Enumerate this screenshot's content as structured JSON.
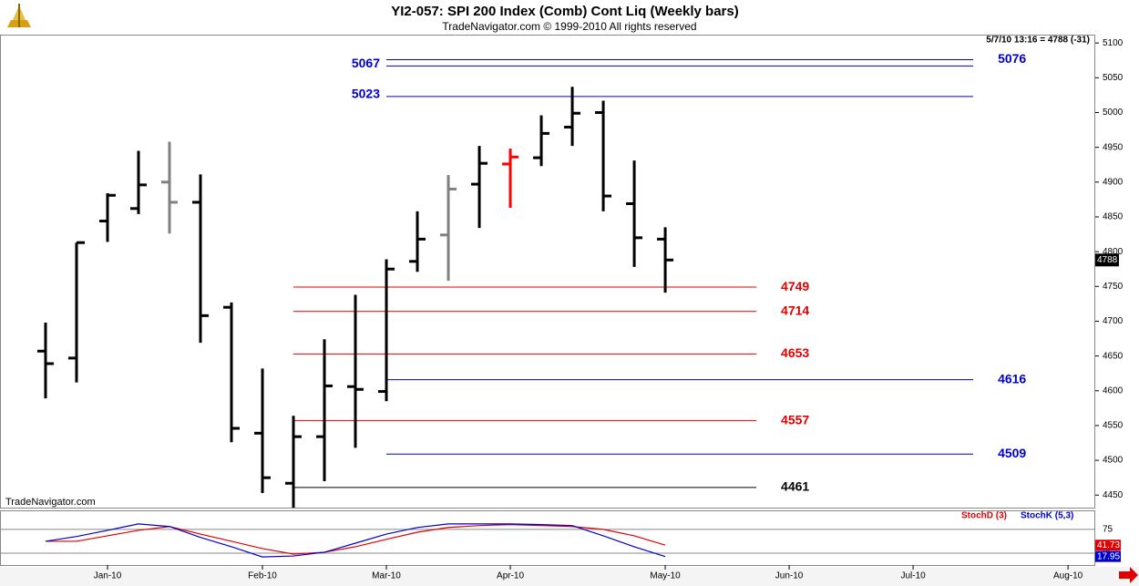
{
  "chart_data": [
    {
      "type": "ohlc",
      "title": "YI2-057:  SPI 200 Index (Comb) Cont Liq  (Weekly bars)",
      "subtitle": "TradeNavigator.com © 1999-2010 All rights reserved",
      "info": "5/7/10 13:16 = 4788 (-31)",
      "watermark": "TradeNavigator.com",
      "x": [
        0,
        1,
        2,
        3,
        4,
        5,
        6,
        7,
        8,
        9,
        10,
        11,
        12,
        13,
        14,
        15,
        16,
        17,
        18,
        19,
        20
      ],
      "open": [
        4657,
        4647,
        4844,
        4862,
        4900,
        4871,
        4720,
        4539,
        4467,
        4534,
        4606,
        4599,
        4786,
        4824,
        4897,
        4926,
        4935,
        4979,
        5000,
        4869,
        4818
      ],
      "high": [
        4698,
        4813,
        4884,
        4945,
        4958,
        4911,
        4727,
        4632,
        4564,
        4674,
        4738,
        4789,
        4858,
        4910,
        4952,
        4948,
        4996,
        5037,
        5017,
        4931,
        4835
      ],
      "low": [
        4589,
        4612,
        4814,
        4854,
        4826,
        4669,
        4526,
        4453,
        4432,
        4470,
        4518,
        4585,
        4771,
        4758,
        4834,
        4863,
        4923,
        4952,
        4858,
        4778,
        4741
      ],
      "close": [
        4639,
        4813,
        4881,
        4896,
        4871,
        4708,
        4546,
        4475,
        4534,
        4607,
        4602,
        4775,
        4818,
        4890,
        4927,
        4936,
        4970,
        4999,
        4880,
        4820,
        4788
      ],
      "bar_colors": [
        "#000000",
        "#000000",
        "#000000",
        "#000000",
        "#808080",
        "#000000",
        "#000000",
        "#000000",
        "#000000",
        "#000000",
        "#000000",
        "#000000",
        "#000000",
        "#808080",
        "#000000",
        "#ff0000",
        "#000000",
        "#000000",
        "#000000",
        "#000000",
        "#000000"
      ],
      "levels": [
        {
          "value": 5076,
          "color": "#0000cc",
          "start": 11,
          "end": 29.94,
          "label_side": "right"
        },
        {
          "value": 5067,
          "color": "#0000cc",
          "start": 11,
          "end": 29.94,
          "label_side": "left"
        },
        {
          "value": 5023,
          "color": "#0000cc",
          "start": 11,
          "end": 29.94,
          "label_side": "left"
        },
        {
          "value": 4749,
          "color": "#e00000",
          "start": 8,
          "end": 22.94,
          "label_side": "right"
        },
        {
          "value": 4714,
          "color": "#e00000",
          "start": 8,
          "end": 22.94,
          "label_side": "right"
        },
        {
          "value": 4653,
          "color": "#e00000",
          "start": 8,
          "end": 22.94,
          "label_side": "right"
        },
        {
          "value": 4616,
          "color": "#0000cc",
          "start": 11,
          "end": 29.94,
          "label_side": "right"
        },
        {
          "value": 4557,
          "color": "#e00000",
          "start": 8,
          "end": 22.94,
          "label_side": "right"
        },
        {
          "value": 4509,
          "color": "#0000cc",
          "start": 11,
          "end": 29.94,
          "label_side": "right"
        },
        {
          "value": 4461,
          "color": "#000000",
          "start": 8,
          "end": 22.94,
          "label_side": "right"
        }
      ],
      "xlim": [
        -1.47,
        33.82
      ],
      "xticks": [
        {
          "value": 2,
          "label": "Jan-10"
        },
        {
          "value": 7,
          "label": "Feb-10"
        },
        {
          "value": 11,
          "label": "Mar-10"
        },
        {
          "value": 15,
          "label": "Apr-10"
        },
        {
          "value": 20,
          "label": "May-10"
        },
        {
          "value": 24,
          "label": "Jun-10"
        },
        {
          "value": 28,
          "label": "Jul-10"
        },
        {
          "value": 33,
          "label": "Aug-10"
        }
      ],
      "ylim": [
        4432,
        5112
      ],
      "yticks": [
        4450,
        4500,
        4550,
        4600,
        4650,
        4700,
        4750,
        4800,
        4850,
        4900,
        4950,
        5000,
        5050,
        5100
      ]
    },
    {
      "type": "line",
      "series": [
        {
          "name": "StochD (3)",
          "color": "#e00000",
          "values": [
            50,
            50,
            61.5,
            73,
            81,
            65,
            50,
            34.6,
            23,
            27,
            38.5,
            54,
            69,
            79,
            83,
            85,
            83,
            81,
            75,
            61.5,
            41.73
          ]
        },
        {
          "name": "StochK (5,3)",
          "color": "#0000cc",
          "values": [
            50,
            60,
            73,
            86.5,
            81,
            58,
            38.5,
            17,
            19,
            27,
            46,
            65,
            79,
            86.5,
            86.5,
            86.5,
            85,
            83,
            61.5,
            38.5,
            17.95
          ]
        }
      ],
      "ylim": [
        0,
        115
      ],
      "yticks": [
        25,
        75
      ]
    }
  ]
}
